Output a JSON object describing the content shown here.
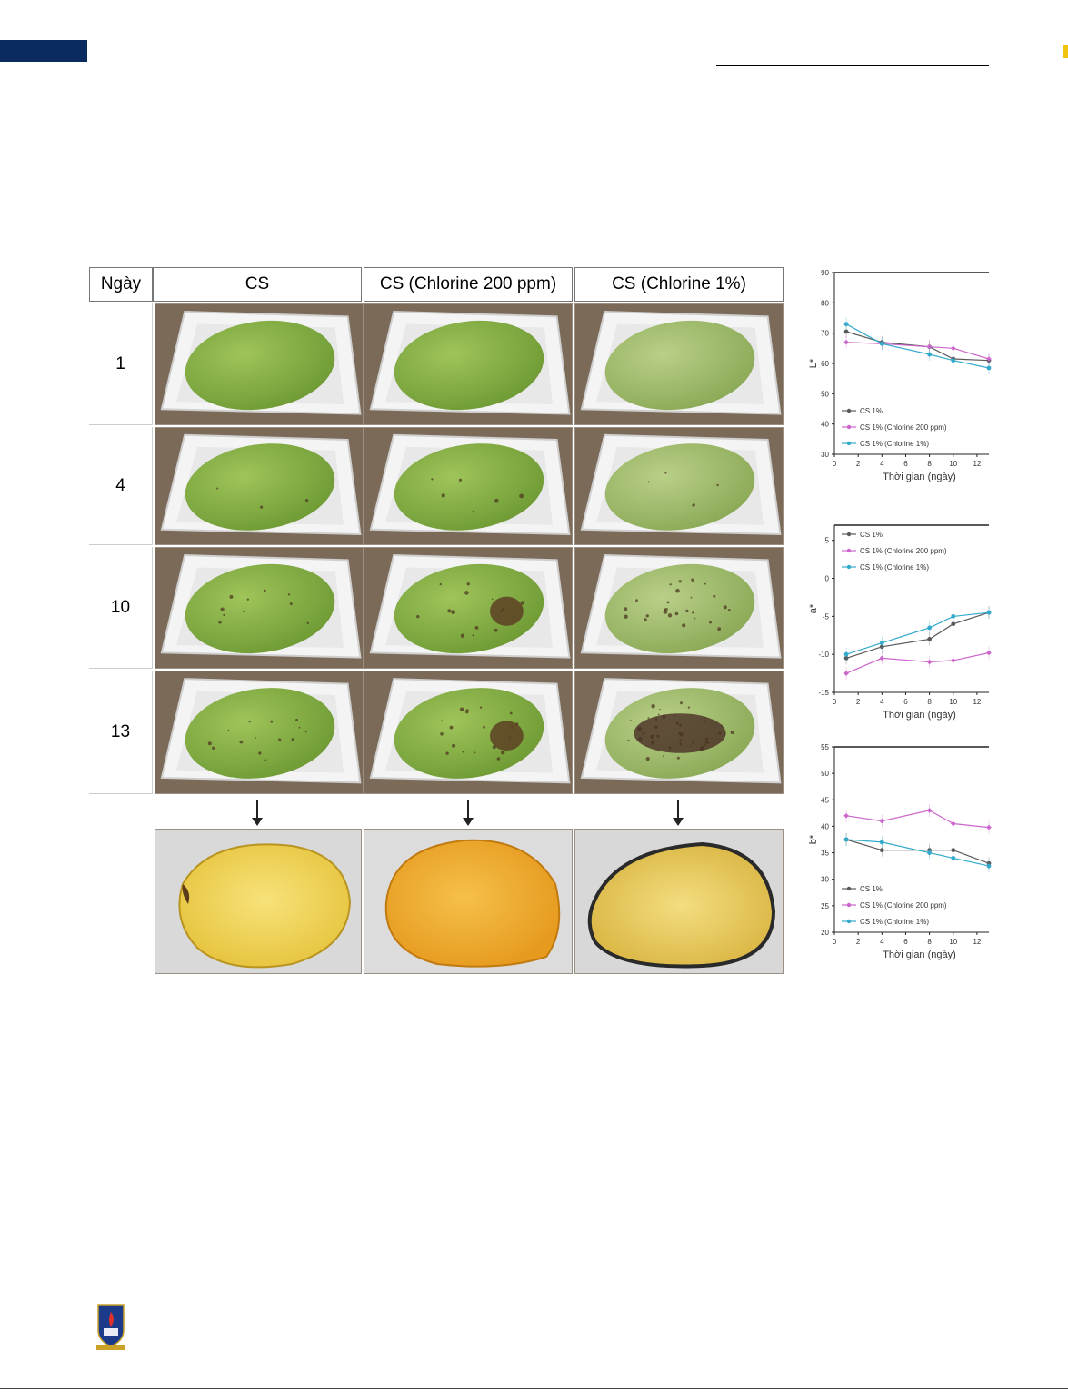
{
  "figure": {
    "header": {
      "day_label": "Ngày",
      "columns": [
        "CS",
        "CS (Chlorine 200 ppm)",
        "CS (Chlorine 1%)"
      ]
    },
    "days": [
      "1",
      "4",
      "10",
      "13"
    ],
    "treatments": [
      "CS",
      "CS (Chlorine 200 ppm)",
      "CS (Chlorine 1%)"
    ]
  },
  "colors": {
    "cs": "#5a5a5a",
    "chlorine200": "#cc66cc",
    "chlorine1": "#33aacc",
    "header_bar": "#0b2a5e"
  },
  "chart_data": [
    {
      "type": "line",
      "ylabel": "L*",
      "xlabel": "Thời gian (ngày)",
      "ylim": [
        30,
        90
      ],
      "yticks": [
        30,
        40,
        50,
        60,
        70,
        80,
        90
      ],
      "xlim": [
        0,
        13
      ],
      "xticks": [
        0,
        2,
        4,
        6,
        8,
        10,
        12
      ],
      "x": [
        1,
        4,
        8,
        10,
        13
      ],
      "legend_position": "bottom-left",
      "series": [
        {
          "name": "CS 1%",
          "values": [
            70.5,
            67,
            65.5,
            61.5,
            61
          ]
        },
        {
          "name": "CS 1% (Chlorine 200 ppm)",
          "values": [
            67,
            66.5,
            65.5,
            65,
            61.5
          ]
        },
        {
          "name": "CS 1% (Chlorine 1%)",
          "values": [
            73,
            66.5,
            63,
            61,
            58.5
          ]
        }
      ]
    },
    {
      "type": "line",
      "ylabel": "a*",
      "xlabel": "Thời gian (ngày)",
      "ylim": [
        -15,
        7
      ],
      "yticks": [
        -15,
        -10,
        -5,
        0,
        5
      ],
      "xlim": [
        0,
        13
      ],
      "xticks": [
        0,
        2,
        4,
        6,
        8,
        10,
        12
      ],
      "x": [
        1,
        4,
        8,
        10,
        13
      ],
      "legend_position": "top-left",
      "series": [
        {
          "name": "CS 1%",
          "values": [
            -10.5,
            -9,
            -8,
            -6,
            -4.5
          ]
        },
        {
          "name": "CS 1% (Chlorine 200 ppm)",
          "values": [
            -12.5,
            -10.5,
            -11,
            -10.8,
            -9.8
          ]
        },
        {
          "name": "CS 1% (Chlorine 1%)",
          "values": [
            -10,
            -8.5,
            -6.5,
            -5,
            -4.5
          ]
        }
      ]
    },
    {
      "type": "line",
      "ylabel": "b*",
      "xlabel": "Thời gian (ngày)",
      "ylim": [
        20,
        55
      ],
      "yticks": [
        20,
        25,
        30,
        35,
        40,
        45,
        50,
        55
      ],
      "xlim": [
        0,
        13
      ],
      "xticks": [
        0,
        2,
        4,
        6,
        8,
        10,
        12
      ],
      "x": [
        1,
        4,
        8,
        10,
        13
      ],
      "legend_position": "bottom-left",
      "series": [
        {
          "name": "CS 1%",
          "values": [
            37.5,
            35.5,
            35.5,
            35.5,
            33
          ]
        },
        {
          "name": "CS 1% (Chlorine 200 ppm)",
          "values": [
            42,
            41,
            43,
            40.5,
            39.8
          ]
        },
        {
          "name": "CS 1% (Chlorine 1%)",
          "values": [
            37.5,
            37,
            35,
            34,
            32.5
          ]
        }
      ]
    }
  ]
}
